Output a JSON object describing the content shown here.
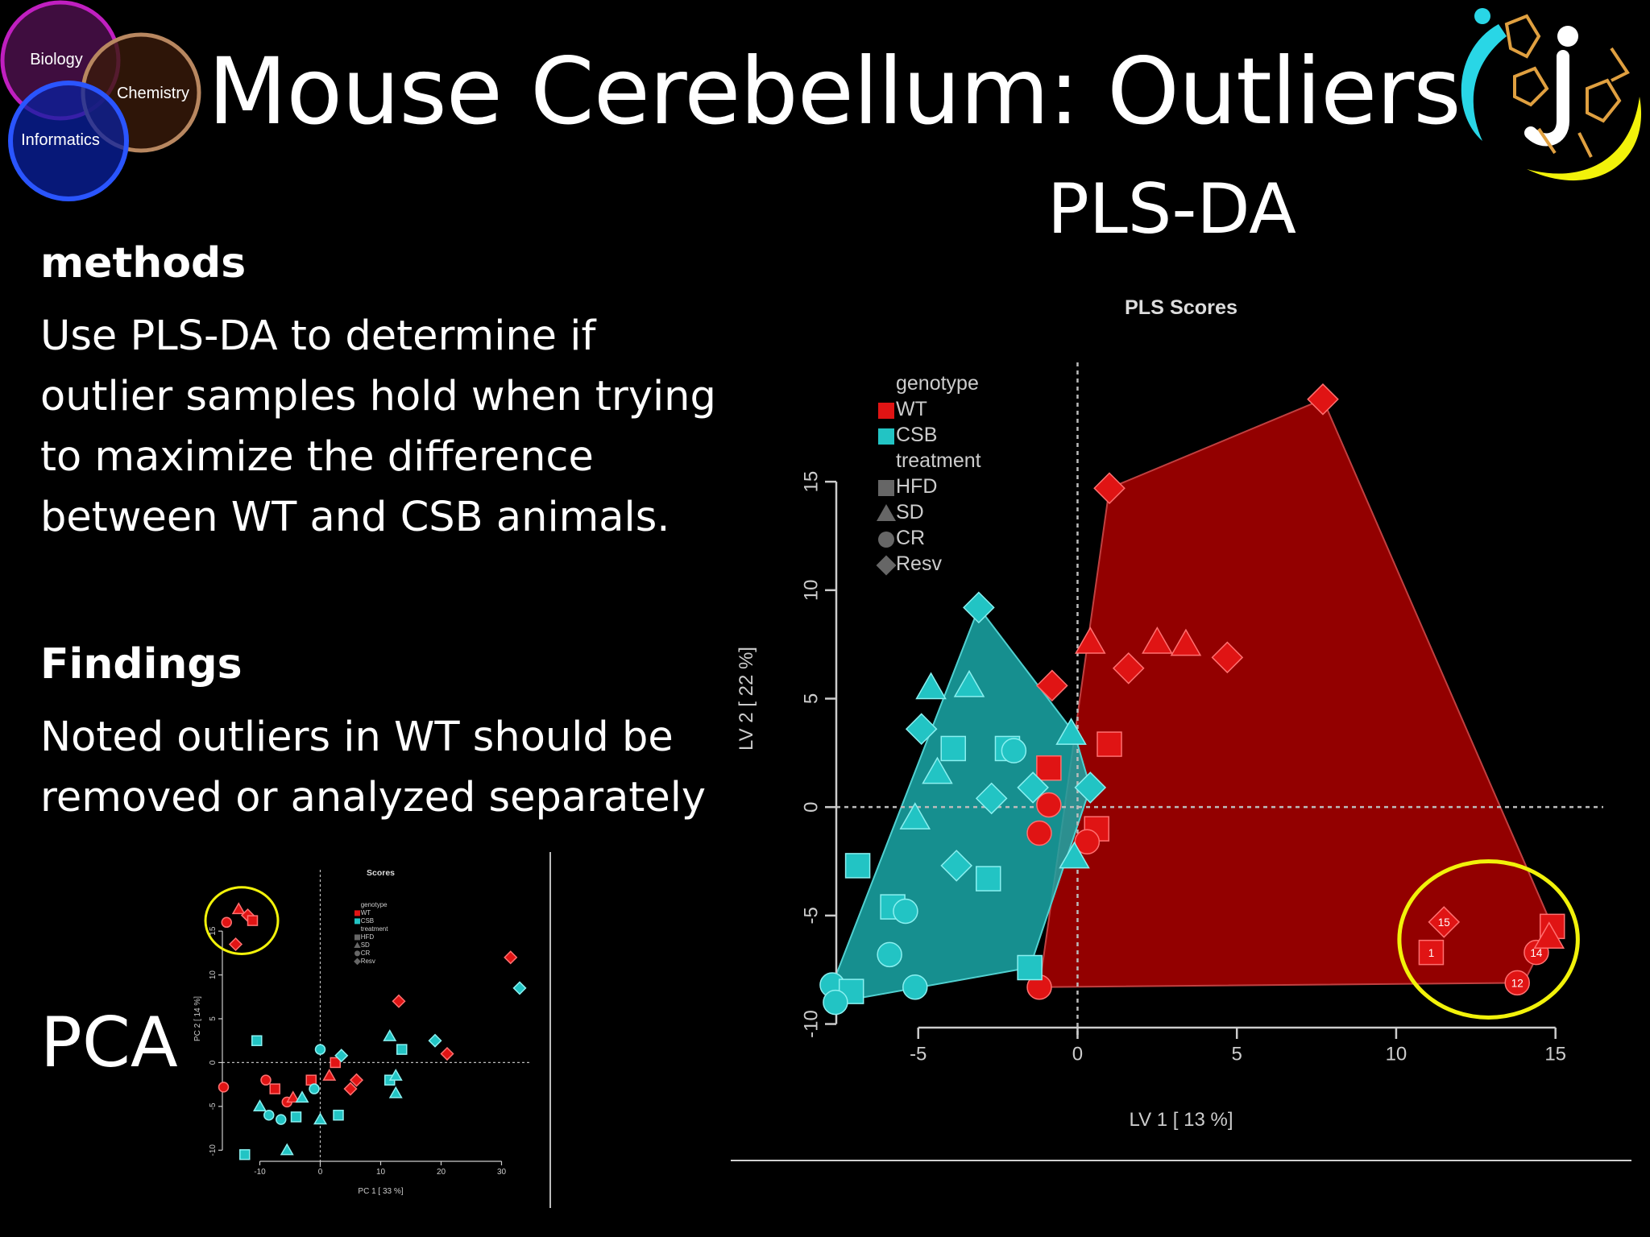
{
  "header": {
    "title": "Mouse Cerebellum: Outliers",
    "plsda_heading": "PLS-DA",
    "venn_labels": [
      "Biology",
      "Chemistry",
      "Informatics"
    ]
  },
  "methods": {
    "heading": "methods",
    "text": "Use PLS-DA to determine if outlier samples hold when trying to maximize the difference between WT and CSB animals."
  },
  "findings": {
    "heading": "Findings",
    "text": "Noted outliers in WT should be removed or analyzed separately"
  },
  "pca_label": "PCA",
  "colors": {
    "WT": "#e01414",
    "CSB": "#22c4c4",
    "outlier_circle": "#f2f20a",
    "wt_hull": "#a00000",
    "csb_hull": "#1aa8a8"
  },
  "chart_data": [
    {
      "type": "scatter",
      "title": "PLS Scores",
      "xlabel": "LV 1 [ 13 %]",
      "ylabel": "LV 2 [ 22 %]",
      "xlim": [
        -10,
        16.5
      ],
      "ylim": [
        -10.5,
        20.5
      ],
      "xticks": [
        -5,
        0,
        5,
        10,
        15
      ],
      "yticks": [
        -10,
        -5,
        0,
        5,
        10,
        15
      ],
      "legend": {
        "placement": "top-left",
        "genotype_title": "genotype",
        "genotypes": [
          "WT",
          "CSB"
        ],
        "treatment_title": "treatment",
        "treatments": [
          "HFD",
          "SD",
          "CR",
          "Resv"
        ]
      },
      "outlier_labels": [
        "15",
        "1",
        "14",
        "12"
      ],
      "series": [
        {
          "name": "WT",
          "points": [
            {
              "x": 7.7,
              "y": 18.8,
              "shape": "Resv"
            },
            {
              "x": 1.0,
              "y": 14.7,
              "shape": "Resv"
            },
            {
              "x": 0.4,
              "y": 7.6,
              "shape": "SD"
            },
            {
              "x": 2.5,
              "y": 7.6,
              "shape": "SD"
            },
            {
              "x": 3.4,
              "y": 7.5,
              "shape": "SD"
            },
            {
              "x": 1.6,
              "y": 6.4,
              "shape": "Resv"
            },
            {
              "x": 4.7,
              "y": 6.9,
              "shape": "Resv"
            },
            {
              "x": -0.8,
              "y": 5.6,
              "shape": "Resv"
            },
            {
              "x": 1.0,
              "y": 2.9,
              "shape": "HFD"
            },
            {
              "x": -0.9,
              "y": 1.8,
              "shape": "HFD"
            },
            {
              "x": -0.9,
              "y": 0.1,
              "shape": "CR"
            },
            {
              "x": -1.2,
              "y": -1.2,
              "shape": "CR"
            },
            {
              "x": 0.6,
              "y": -1.0,
              "shape": "HFD"
            },
            {
              "x": 0.3,
              "y": -1.6,
              "shape": "CR"
            },
            {
              "x": -1.2,
              "y": -8.3,
              "shape": "CR"
            },
            {
              "x": 11.5,
              "y": -5.3,
              "shape": "Resv",
              "label": "15"
            },
            {
              "x": 11.1,
              "y": -6.7,
              "shape": "HFD",
              "label": "1"
            },
            {
              "x": 14.9,
              "y": -5.5,
              "shape": "HFD"
            },
            {
              "x": 14.4,
              "y": -6.7,
              "shape": "CR",
              "label": "14"
            },
            {
              "x": 14.8,
              "y": -6.0,
              "shape": "SD"
            },
            {
              "x": 13.8,
              "y": -8.1,
              "shape": "CR",
              "label": "12"
            }
          ]
        },
        {
          "name": "CSB",
          "points": [
            {
              "x": -3.1,
              "y": 9.2,
              "shape": "Resv"
            },
            {
              "x": -4.6,
              "y": 5.5,
              "shape": "SD"
            },
            {
              "x": -3.4,
              "y": 5.6,
              "shape": "SD"
            },
            {
              "x": -4.9,
              "y": 3.6,
              "shape": "Resv"
            },
            {
              "x": -3.9,
              "y": 2.7,
              "shape": "HFD"
            },
            {
              "x": -4.4,
              "y": 1.6,
              "shape": "SD"
            },
            {
              "x": -2.2,
              "y": 2.7,
              "shape": "HFD"
            },
            {
              "x": -2.0,
              "y": 2.6,
              "shape": "CR"
            },
            {
              "x": -0.2,
              "y": 3.4,
              "shape": "SD"
            },
            {
              "x": -1.4,
              "y": 0.9,
              "shape": "Resv"
            },
            {
              "x": 0.4,
              "y": 0.9,
              "shape": "Resv"
            },
            {
              "x": -2.7,
              "y": 0.4,
              "shape": "Resv"
            },
            {
              "x": -5.1,
              "y": -0.5,
              "shape": "SD"
            },
            {
              "x": -3.8,
              "y": -2.7,
              "shape": "Resv"
            },
            {
              "x": -2.8,
              "y": -3.3,
              "shape": "HFD"
            },
            {
              "x": -6.9,
              "y": -2.7,
              "shape": "HFD"
            },
            {
              "x": -0.1,
              "y": -2.3,
              "shape": "SD"
            },
            {
              "x": -5.8,
              "y": -4.6,
              "shape": "HFD"
            },
            {
              "x": -5.4,
              "y": -4.8,
              "shape": "CR"
            },
            {
              "x": -5.9,
              "y": -6.8,
              "shape": "CR"
            },
            {
              "x": -7.7,
              "y": -8.2,
              "shape": "CR"
            },
            {
              "x": -7.1,
              "y": -8.5,
              "shape": "HFD"
            },
            {
              "x": -5.1,
              "y": -8.3,
              "shape": "CR"
            },
            {
              "x": -7.6,
              "y": -9.0,
              "shape": "CR"
            },
            {
              "x": -1.5,
              "y": -7.4,
              "shape": "HFD"
            }
          ]
        }
      ],
      "hulls": {
        "WT": [
          [
            7.7,
            18.8
          ],
          [
            1.0,
            14.7
          ],
          [
            -1.2,
            -8.3
          ],
          [
            14.0,
            -8.1
          ],
          [
            14.9,
            -5.5
          ]
        ],
        "CSB": [
          [
            -3.1,
            9.2
          ],
          [
            -0.1,
            3.4
          ],
          [
            0.4,
            0.9
          ],
          [
            -1.5,
            -7.4
          ],
          [
            -7.6,
            -9.0
          ],
          [
            -7.7,
            -8.2
          ]
        ]
      },
      "outlier_circle": {
        "cx": 12.9,
        "cy": -6.1,
        "rx": 2.8,
        "ry": 3.6
      }
    },
    {
      "type": "scatter",
      "title": "Scores",
      "xlabel": "PC 1 [ 33 %]",
      "ylabel": "PC 2 [ 14 %]",
      "xlim": [
        -15,
        35
      ],
      "ylim": [
        -12,
        22
      ],
      "xticks": [
        -10,
        0,
        10,
        20,
        30
      ],
      "yticks": [
        -10,
        -5,
        0,
        5,
        10,
        15
      ],
      "legend": {
        "placement": "top-right",
        "genotype_title": "genotype",
        "genotypes": [
          "WT",
          "CSB"
        ],
        "treatment_title": "treatment",
        "treatments": [
          "HFD",
          "SD",
          "CR",
          "Resv"
        ]
      },
      "series": [
        {
          "name": "WT",
          "points": [
            {
              "x": -15.5,
              "y": 16.0,
              "shape": "CR"
            },
            {
              "x": -13.5,
              "y": 17.5,
              "shape": "SD"
            },
            {
              "x": -12.0,
              "y": 16.8,
              "shape": "Resv"
            },
            {
              "x": -11.2,
              "y": 16.2,
              "shape": "HFD"
            },
            {
              "x": -14.0,
              "y": 13.5,
              "shape": "Resv"
            },
            {
              "x": -16.0,
              "y": -2.8,
              "shape": "CR"
            },
            {
              "x": -9.0,
              "y": -2.0,
              "shape": "CR"
            },
            {
              "x": -7.5,
              "y": -3.0,
              "shape": "HFD"
            },
            {
              "x": -5.5,
              "y": -4.5,
              "shape": "CR"
            },
            {
              "x": -4.5,
              "y": -4.0,
              "shape": "SD"
            },
            {
              "x": -1.5,
              "y": -2.0,
              "shape": "HFD"
            },
            {
              "x": 1.5,
              "y": -1.5,
              "shape": "SD"
            },
            {
              "x": 2.5,
              "y": 0.0,
              "shape": "HFD"
            },
            {
              "x": 5.0,
              "y": -3.0,
              "shape": "Resv"
            },
            {
              "x": 6.0,
              "y": -2.0,
              "shape": "Resv"
            },
            {
              "x": 13.0,
              "y": 7.0,
              "shape": "Resv"
            },
            {
              "x": 21.0,
              "y": 1.0,
              "shape": "Resv"
            },
            {
              "x": 31.5,
              "y": 12.0,
              "shape": "Resv"
            }
          ]
        },
        {
          "name": "CSB",
          "points": [
            {
              "x": -10.0,
              "y": -5.0,
              "shape": "SD"
            },
            {
              "x": -8.5,
              "y": -6.0,
              "shape": "CR"
            },
            {
              "x": -6.5,
              "y": -6.5,
              "shape": "CR"
            },
            {
              "x": -4.0,
              "y": -6.2,
              "shape": "HFD"
            },
            {
              "x": -3.0,
              "y": -4.0,
              "shape": "SD"
            },
            {
              "x": -1.0,
              "y": -3.0,
              "shape": "CR"
            },
            {
              "x": 0.0,
              "y": -6.5,
              "shape": "SD"
            },
            {
              "x": 0.0,
              "y": 1.5,
              "shape": "CR"
            },
            {
              "x": 3.0,
              "y": -6.0,
              "shape": "HFD"
            },
            {
              "x": 3.5,
              "y": 0.8,
              "shape": "Resv"
            },
            {
              "x": 11.5,
              "y": -2.0,
              "shape": "HFD"
            },
            {
              "x": 11.5,
              "y": 3.0,
              "shape": "SD"
            },
            {
              "x": 12.5,
              "y": -1.5,
              "shape": "SD"
            },
            {
              "x": 12.5,
              "y": -3.5,
              "shape": "SD"
            },
            {
              "x": 13.5,
              "y": 1.5,
              "shape": "HFD"
            },
            {
              "x": 19.0,
              "y": 2.5,
              "shape": "Resv"
            },
            {
              "x": 33.0,
              "y": 8.5,
              "shape": "Resv"
            },
            {
              "x": -12.5,
              "y": -10.5,
              "shape": "HFD"
            },
            {
              "x": -5.5,
              "y": -10.0,
              "shape": "SD"
            },
            {
              "x": -10.5,
              "y": 2.5,
              "shape": "HFD"
            }
          ]
        }
      ],
      "outlier_circle": {
        "cx": -13.0,
        "cy": 16.2,
        "rx": 6.0,
        "ry": 3.8
      }
    }
  ]
}
